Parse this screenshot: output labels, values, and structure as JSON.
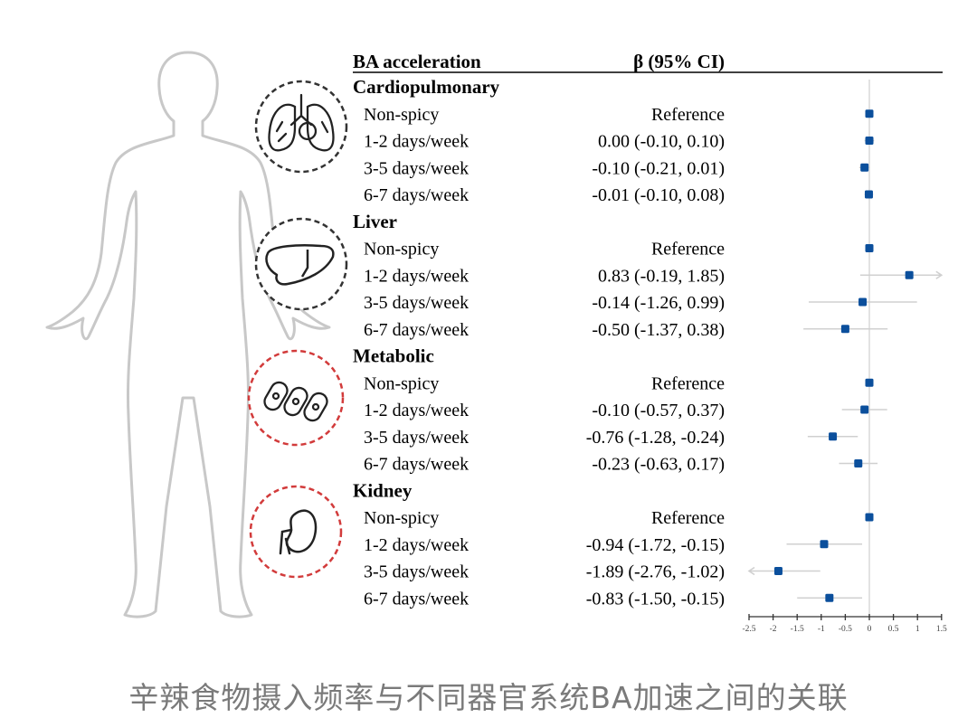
{
  "caption": "辛辣食物摄入频率与不同器官系统BA加速之间的关联",
  "chart_data": {
    "type": "forest",
    "header": {
      "col1": "BA acceleration",
      "col2": "β (95% CI)"
    },
    "xlim": [
      -2.5,
      1.5
    ],
    "xticks": [
      "-2.5",
      "-2",
      "-1.5",
      "-1",
      "-0.5",
      "0",
      "0.5",
      "1",
      "1.5"
    ],
    "tick_values": [
      -2.5,
      -2,
      -1.5,
      -1,
      -0.5,
      0,
      0.5,
      1,
      1.5
    ],
    "reference_line": 0,
    "colors": {
      "point": "#0b4f9c",
      "ci": "#d0d0d0",
      "icon_dark": "#333333",
      "icon_red": "#d23b3b"
    },
    "groups": [
      {
        "name": "Cardiopulmonary",
        "icon": "lungs-icon",
        "rows": [
          {
            "label": "Non-spicy",
            "text": "Reference",
            "beta": 0,
            "lo": null,
            "hi": null
          },
          {
            "label": "1-2 days/week",
            "text": "0.00 (-0.10, 0.10)",
            "beta": 0.0,
            "lo": -0.1,
            "hi": 0.1
          },
          {
            "label": "3-5 days/week",
            "text": "-0.10 (-0.21, 0.01)",
            "beta": -0.1,
            "lo": -0.21,
            "hi": 0.01
          },
          {
            "label": "6-7 days/week",
            "text": "-0.01 (-0.10, 0.08)",
            "beta": -0.01,
            "lo": -0.1,
            "hi": 0.08
          }
        ]
      },
      {
        "name": "Liver",
        "icon": "liver-icon",
        "rows": [
          {
            "label": "Non-spicy",
            "text": "Reference",
            "beta": 0,
            "lo": null,
            "hi": null
          },
          {
            "label": "1-2 days/week",
            "text": "0.83 (-0.19, 1.85)",
            "beta": 0.83,
            "lo": -0.19,
            "hi": 1.85
          },
          {
            "label": "3-5 days/week",
            "text": "-0.14 (-1.26, 0.99)",
            "beta": -0.14,
            "lo": -1.26,
            "hi": 0.99
          },
          {
            "label": "6-7 days/week",
            "text": "-0.50 (-1.37, 0.38)",
            "beta": -0.5,
            "lo": -1.37,
            "hi": 0.38
          }
        ]
      },
      {
        "name": "Metabolic",
        "icon": "cells-icon",
        "rows": [
          {
            "label": "Non-spicy",
            "text": "Reference",
            "beta": 0,
            "lo": null,
            "hi": null
          },
          {
            "label": "1-2 days/week",
            "text": "-0.10 (-0.57, 0.37)",
            "beta": -0.1,
            "lo": -0.57,
            "hi": 0.37
          },
          {
            "label": "3-5 days/week",
            "text": "-0.76 (-1.28, -0.24)",
            "beta": -0.76,
            "lo": -1.28,
            "hi": -0.24
          },
          {
            "label": "6-7 days/week",
            "text": "-0.23 (-0.63, 0.17)",
            "beta": -0.23,
            "lo": -0.63,
            "hi": 0.17
          }
        ]
      },
      {
        "name": "Kidney",
        "icon": "kidney-icon",
        "rows": [
          {
            "label": "Non-spicy",
            "text": "Reference",
            "beta": 0,
            "lo": null,
            "hi": null
          },
          {
            "label": "1-2 days/week",
            "text": "-0.94 (-1.72, -0.15)",
            "beta": -0.94,
            "lo": -1.72,
            "hi": -0.15
          },
          {
            "label": "3-5 days/week",
            "text": "-1.89 (-2.76, -1.02)",
            "beta": -1.89,
            "lo": -2.76,
            "hi": -1.02
          },
          {
            "label": "6-7 days/week",
            "text": "-0.83 (-1.50, -0.15)",
            "beta": -0.83,
            "lo": -1.5,
            "hi": -0.15
          }
        ]
      }
    ]
  }
}
